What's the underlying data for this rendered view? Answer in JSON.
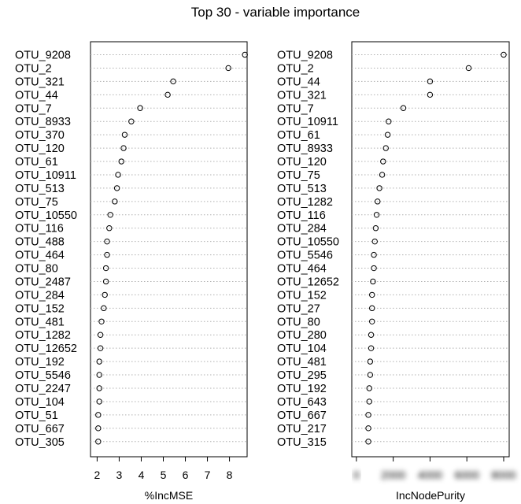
{
  "chart_data": {
    "title": "Top 30 - variable importance",
    "panels": [
      {
        "type": "scatter",
        "xlabel": "%IncMSE",
        "xlim": [
          1.7,
          8.8
        ],
        "xticks": [
          2,
          3,
          4,
          5,
          6,
          7,
          8
        ],
        "grid": "horizontal-dotted",
        "variables": [
          "OTU_9208",
          "OTU_2",
          "OTU_321",
          "OTU_44",
          "OTU_7",
          "OTU_8933",
          "OTU_370",
          "OTU_120",
          "OTU_61",
          "OTU_10911",
          "OTU_513",
          "OTU_75",
          "OTU_10550",
          "OTU_116",
          "OTU_488",
          "OTU_464",
          "OTU_80",
          "OTU_2487",
          "OTU_284",
          "OTU_152",
          "OTU_481",
          "OTU_1282",
          "OTU_12652",
          "OTU_192",
          "OTU_5546",
          "OTU_2247",
          "OTU_104",
          "OTU_51",
          "OTU_667",
          "OTU_305"
        ],
        "values": [
          8.7,
          7.95,
          5.45,
          5.2,
          3.95,
          3.55,
          3.25,
          3.2,
          3.1,
          2.95,
          2.9,
          2.8,
          2.6,
          2.55,
          2.45,
          2.45,
          2.4,
          2.4,
          2.35,
          2.3,
          2.2,
          2.15,
          2.15,
          2.1,
          2.1,
          2.1,
          2.1,
          2.05,
          2.05,
          2.05
        ]
      },
      {
        "type": "scatter",
        "xlabel": "IncNodePurity",
        "xlim": [
          -250,
          8300
        ],
        "xticks": [
          0,
          2000,
          4000,
          6000,
          8000
        ],
        "tick_labels_blurred": true,
        "grid": "horizontal-dotted",
        "variables": [
          "OTU_9208",
          "OTU_2",
          "OTU_44",
          "OTU_321",
          "OTU_7",
          "OTU_10911",
          "OTU_61",
          "OTU_8933",
          "OTU_120",
          "OTU_75",
          "OTU_513",
          "OTU_1282",
          "OTU_116",
          "OTU_284",
          "OTU_10550",
          "OTU_5546",
          "OTU_464",
          "OTU_12652",
          "OTU_152",
          "OTU_27",
          "OTU_80",
          "OTU_280",
          "OTU_104",
          "OTU_481",
          "OTU_295",
          "OTU_192",
          "OTU_643",
          "OTU_667",
          "OTU_217",
          "OTU_315"
        ],
        "values": [
          8000,
          6100,
          4000,
          4000,
          2550,
          1750,
          1700,
          1600,
          1450,
          1400,
          1250,
          1150,
          1100,
          1050,
          1000,
          950,
          950,
          900,
          850,
          850,
          850,
          800,
          800,
          750,
          750,
          700,
          700,
          650,
          650,
          650
        ]
      }
    ]
  }
}
